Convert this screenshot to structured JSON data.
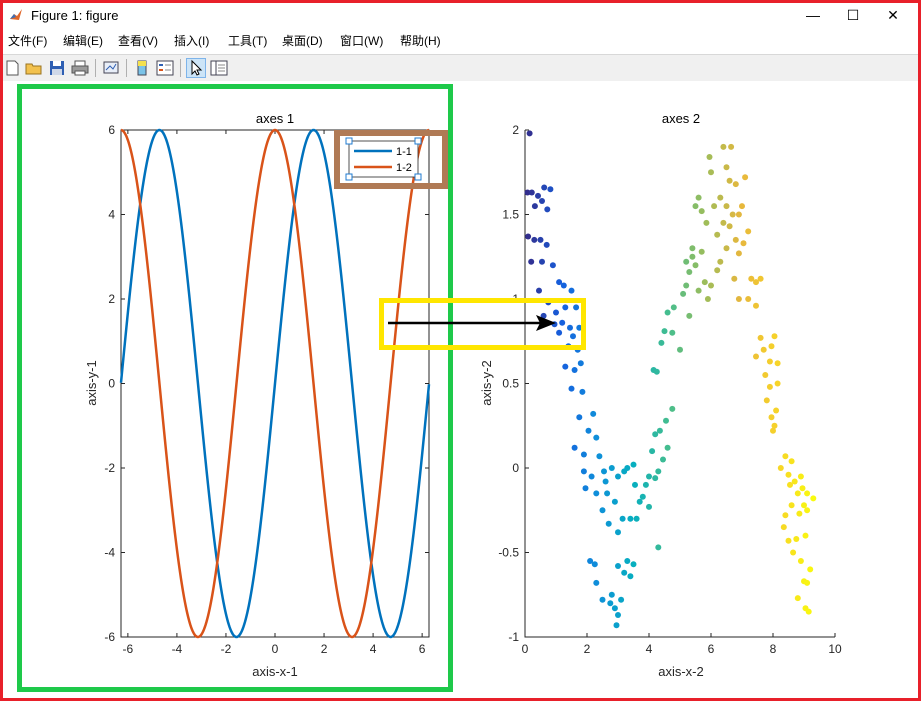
{
  "window": {
    "title": "Figure 1: figure",
    "minimize": "—",
    "maximize": "☐",
    "close": "✕"
  },
  "menu": [
    "文件(F)",
    "编辑(E)",
    "查看(V)",
    "插入(I)",
    "工具(T)",
    "桌面(D)",
    "窗口(W)",
    "帮助(H)"
  ],
  "toolbar_icons": [
    "new-figure-icon",
    "open-file-icon",
    "save-icon",
    "print-icon",
    "link-plot-icon",
    "colorbar-icon",
    "legend-icon",
    "pointer-icon",
    "property-inspector-icon"
  ],
  "colors": {
    "frame": "#e8202a",
    "highlight_green": "#1ec94a",
    "highlight_yellow": "#ffe600",
    "highlight_brown": "#b07a55",
    "series1": "#0072bd",
    "series2": "#d95319"
  },
  "chart_data": [
    {
      "type": "line",
      "title": "axes 1",
      "xlabel": "axis-x-1",
      "ylabel": "axis-y-1",
      "xlim": [
        -6.28,
        6.28
      ],
      "ylim": [
        -6,
        6
      ],
      "xticks": [
        -6,
        -4,
        -2,
        0,
        2,
        4,
        6
      ],
      "yticks": [
        -6,
        -4,
        -2,
        0,
        2,
        4,
        6
      ],
      "series": [
        {
          "name": "1-1",
          "function": "6*sin(x)",
          "color": "#0072bd"
        },
        {
          "name": "1-2",
          "function": "6*cos(x)",
          "color": "#d95319"
        }
      ],
      "legend": {
        "placement": "top-right",
        "entries": [
          "1-1",
          "1-2"
        ]
      }
    },
    {
      "type": "scatter",
      "title": "axes 2",
      "xlabel": "axis-x-2",
      "ylabel": "axis-y-2",
      "xlim": [
        0,
        10
      ],
      "ylim": [
        -1,
        2
      ],
      "xticks": [
        0,
        2,
        4,
        6,
        8,
        10
      ],
      "yticks": [
        -1,
        -0.5,
        0,
        0.5,
        1,
        1.5,
        2
      ],
      "colormap": "parula",
      "points": [
        [
          0.15,
          1.98
        ],
        [
          0.08,
          1.63
        ],
        [
          0.22,
          1.63
        ],
        [
          0.42,
          1.61
        ],
        [
          0.62,
          1.66
        ],
        [
          0.82,
          1.65
        ],
        [
          0.55,
          1.58
        ],
        [
          0.72,
          1.53
        ],
        [
          0.32,
          1.55
        ],
        [
          0.1,
          1.37
        ],
        [
          0.3,
          1.35
        ],
        [
          0.5,
          1.35
        ],
        [
          0.7,
          1.32
        ],
        [
          0.2,
          1.22
        ],
        [
          0.55,
          1.22
        ],
        [
          0.9,
          1.2
        ],
        [
          0.45,
          1.05
        ],
        [
          1.1,
          1.1
        ],
        [
          1.25,
          1.08
        ],
        [
          0.75,
          0.98
        ],
        [
          1.0,
          0.92
        ],
        [
          1.5,
          1.05
        ],
        [
          1.3,
          0.95
        ],
        [
          0.6,
          0.9
        ],
        [
          0.95,
          0.85
        ],
        [
          1.2,
          0.86
        ],
        [
          1.45,
          0.83
        ],
        [
          1.65,
          0.95
        ],
        [
          1.1,
          0.8
        ],
        [
          1.55,
          0.78
        ],
        [
          1.75,
          0.83
        ],
        [
          1.4,
          0.72
        ],
        [
          1.7,
          0.7
        ],
        [
          1.8,
          0.62
        ],
        [
          1.3,
          0.6
        ],
        [
          1.6,
          0.58
        ],
        [
          1.5,
          0.47
        ],
        [
          1.85,
          0.45
        ],
        [
          1.75,
          0.3
        ],
        [
          2.2,
          0.32
        ],
        [
          2.05,
          0.22
        ],
        [
          2.3,
          0.18
        ],
        [
          1.6,
          0.12
        ],
        [
          1.9,
          0.08
        ],
        [
          2.4,
          0.07
        ],
        [
          1.9,
          -0.02
        ],
        [
          2.15,
          -0.05
        ],
        [
          2.55,
          -0.02
        ],
        [
          2.8,
          0.0
        ],
        [
          1.95,
          -0.12
        ],
        [
          2.3,
          -0.15
        ],
        [
          2.6,
          -0.08
        ],
        [
          2.65,
          -0.15
        ],
        [
          3.0,
          -0.05
        ],
        [
          3.2,
          -0.02
        ],
        [
          2.5,
          -0.25
        ],
        [
          2.9,
          -0.2
        ],
        [
          3.3,
          0.0
        ],
        [
          3.5,
          0.02
        ],
        [
          2.7,
          -0.33
        ],
        [
          3.15,
          -0.3
        ],
        [
          3.55,
          -0.1
        ],
        [
          3.7,
          -0.2
        ],
        [
          2.1,
          -0.55
        ],
        [
          2.25,
          -0.57
        ],
        [
          3.0,
          -0.38
        ],
        [
          3.4,
          -0.3
        ],
        [
          3.6,
          -0.3
        ],
        [
          3.8,
          -0.17
        ],
        [
          2.3,
          -0.68
        ],
        [
          3.0,
          -0.58
        ],
        [
          3.3,
          -0.55
        ],
        [
          3.5,
          -0.57
        ],
        [
          3.2,
          -0.62
        ],
        [
          3.4,
          -0.64
        ],
        [
          2.5,
          -0.78
        ],
        [
          2.75,
          -0.8
        ],
        [
          2.8,
          -0.75
        ],
        [
          2.9,
          -0.83
        ],
        [
          3.0,
          -0.87
        ],
        [
          3.1,
          -0.78
        ],
        [
          2.95,
          -0.93
        ],
        [
          3.9,
          -0.1
        ],
        [
          4.0,
          -0.05
        ],
        [
          4.2,
          -0.06
        ],
        [
          4.1,
          0.1
        ],
        [
          4.3,
          -0.02
        ],
        [
          4.0,
          -0.23
        ],
        [
          4.2,
          0.2
        ],
        [
          4.35,
          0.22
        ],
        [
          4.55,
          0.28
        ],
        [
          4.6,
          0.12
        ],
        [
          4.45,
          0.05
        ],
        [
          4.75,
          0.35
        ],
        [
          4.3,
          -0.47
        ],
        [
          4.15,
          0.58
        ],
        [
          4.25,
          0.57
        ],
        [
          4.6,
          0.92
        ],
        [
          4.5,
          0.81
        ],
        [
          4.4,
          0.74
        ],
        [
          4.75,
          0.8
        ],
        [
          5.0,
          0.7
        ],
        [
          4.8,
          0.95
        ],
        [
          5.3,
          0.9
        ],
        [
          5.1,
          1.03
        ],
        [
          5.2,
          1.08
        ],
        [
          5.3,
          1.16
        ],
        [
          5.5,
          1.2
        ],
        [
          5.7,
          1.28
        ],
        [
          5.4,
          1.3
        ],
        [
          5.2,
          1.22
        ],
        [
          5.4,
          1.25
        ],
        [
          5.6,
          1.05
        ],
        [
          5.8,
          1.1
        ],
        [
          5.9,
          1.0
        ],
        [
          6.0,
          1.08
        ],
        [
          5.5,
          1.55
        ],
        [
          5.6,
          1.6
        ],
        [
          5.7,
          1.52
        ],
        [
          5.85,
          1.45
        ],
        [
          6.1,
          1.55
        ],
        [
          6.3,
          1.6
        ],
        [
          6.2,
          1.38
        ],
        [
          6.4,
          1.45
        ],
        [
          6.5,
          1.3
        ],
        [
          6.3,
          1.22
        ],
        [
          6.2,
          1.17
        ],
        [
          6.8,
          1.35
        ],
        [
          6.9,
          1.27
        ],
        [
          7.05,
          1.33
        ],
        [
          6.7,
          1.5
        ],
        [
          6.9,
          1.5
        ],
        [
          7.0,
          1.55
        ],
        [
          7.2,
          1.4
        ],
        [
          6.5,
          1.78
        ],
        [
          6.6,
          1.7
        ],
        [
          6.8,
          1.68
        ],
        [
          7.1,
          1.72
        ],
        [
          5.95,
          1.84
        ],
        [
          6.4,
          1.9
        ],
        [
          6.65,
          1.9
        ],
        [
          6.0,
          1.75
        ],
        [
          6.5,
          1.55
        ],
        [
          6.6,
          1.43
        ],
        [
          6.75,
          1.12
        ],
        [
          7.3,
          1.12
        ],
        [
          7.45,
          1.1
        ],
        [
          7.6,
          1.12
        ],
        [
          7.2,
          1.0
        ],
        [
          7.45,
          0.96
        ],
        [
          6.9,
          1.0
        ],
        [
          7.6,
          0.77
        ],
        [
          7.7,
          0.7
        ],
        [
          7.95,
          0.72
        ],
        [
          8.05,
          0.78
        ],
        [
          7.9,
          0.63
        ],
        [
          7.75,
          0.55
        ],
        [
          7.45,
          0.66
        ],
        [
          8.15,
          0.62
        ],
        [
          7.9,
          0.48
        ],
        [
          8.15,
          0.5
        ],
        [
          7.8,
          0.4
        ],
        [
          8.1,
          0.34
        ],
        [
          7.95,
          0.3
        ],
        [
          8.05,
          0.25
        ],
        [
          8.0,
          0.22
        ],
        [
          8.4,
          0.07
        ],
        [
          8.6,
          0.04
        ],
        [
          8.25,
          0.0
        ],
        [
          8.5,
          -0.04
        ],
        [
          8.55,
          -0.1
        ],
        [
          8.7,
          -0.08
        ],
        [
          8.9,
          -0.05
        ],
        [
          8.95,
          -0.12
        ],
        [
          8.8,
          -0.15
        ],
        [
          9.1,
          -0.15
        ],
        [
          9.3,
          -0.18
        ],
        [
          8.6,
          -0.22
        ],
        [
          8.4,
          -0.28
        ],
        [
          8.85,
          -0.27
        ],
        [
          9.0,
          -0.22
        ],
        [
          9.1,
          -0.25
        ],
        [
          8.35,
          -0.35
        ],
        [
          8.5,
          -0.43
        ],
        [
          8.75,
          -0.42
        ],
        [
          9.05,
          -0.4
        ],
        [
          8.65,
          -0.5
        ],
        [
          8.9,
          -0.55
        ],
        [
          9.2,
          -0.6
        ],
        [
          9.0,
          -0.67
        ],
        [
          9.1,
          -0.68
        ],
        [
          8.8,
          -0.77
        ],
        [
          9.05,
          -0.83
        ],
        [
          9.15,
          -0.85
        ]
      ]
    }
  ]
}
